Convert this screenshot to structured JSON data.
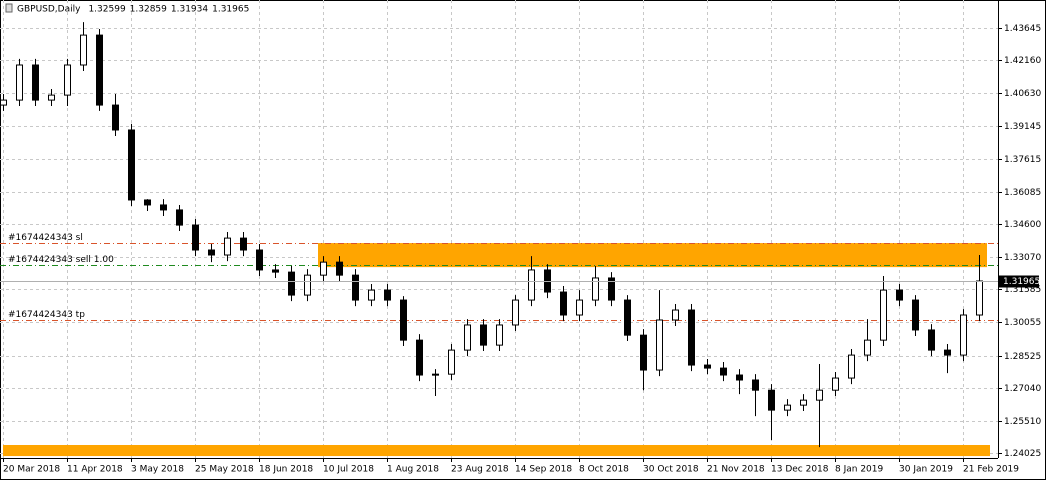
{
  "chart_data": {
    "type": "candlestick",
    "title": "GBPUSD,Daily",
    "header_quote": [
      1.32599,
      1.32859,
      1.31934,
      1.31965
    ],
    "last_price": 1.31965,
    "categories": [
      "20 Mar 2018",
      null,
      null,
      null,
      "11 Apr 2018",
      null,
      null,
      null,
      "3 May 2018",
      null,
      null,
      null,
      "25 May 2018",
      null,
      null,
      null,
      "18 Jun 2018",
      null,
      null,
      null,
      "10 Jul 2018",
      null,
      null,
      null,
      "1 Aug 2018",
      null,
      null,
      null,
      "23 Aug 2018",
      null,
      null,
      null,
      "14 Sep 2018",
      null,
      null,
      null,
      "8 Oct 2018",
      null,
      null,
      null,
      "30 Oct 2018",
      null,
      null,
      null,
      "21 Nov 2018",
      null,
      null,
      null,
      "13 Dec 2018",
      null,
      null,
      null,
      "8 Jan 2019",
      null,
      null,
      null,
      "30 Jan 2019",
      null,
      null,
      null,
      "21 Feb 2019",
      null
    ],
    "open": [
      1.4009,
      1.4032,
      1.4194,
      1.4032,
      1.4055,
      1.4194,
      1.4332,
      1.4009,
      1.3894,
      1.3571,
      1.3548,
      1.3525,
      1.3455,
      1.334,
      1.3317,
      1.3395,
      1.334,
      1.3248,
      1.3238,
      1.3132,
      1.3224,
      1.3284,
      1.3224,
      1.3109,
      1.3155,
      1.3109,
      1.2924,
      1.2763,
      1.2767,
      1.2878,
      1.2994,
      1.2901,
      1.2994,
      1.3109,
      1.3248,
      1.3146,
      1.304,
      1.3109,
      1.3211,
      1.3109,
      1.2947,
      1.2786,
      1.3017,
      1.3063,
      1.2809,
      1.2795,
      1.2763,
      1.274,
      1.2693,
      1.2601,
      1.2624,
      1.2647,
      1.2693,
      1.2749,
      1.2855,
      1.2924,
      1.3155,
      1.3109,
      1.2971,
      1.2878,
      1.2855,
      1.304
    ],
    "high": [
      1.406,
      1.4222,
      1.4222,
      1.4083,
      1.4222,
      1.4392,
      1.436,
      1.406,
      1.3922,
      1.3575,
      1.3575,
      1.3548,
      1.3483,
      1.3368,
      1.3423,
      1.3423,
      1.3368,
      1.3275,
      1.3266,
      1.3252,
      1.3312,
      1.3312,
      1.3252,
      1.3183,
      1.3183,
      1.3127,
      1.2952,
      1.279,
      1.2906,
      1.3021,
      1.3021,
      1.3021,
      1.3132,
      1.3312,
      1.3275,
      1.3174,
      1.3155,
      1.3266,
      1.3238,
      1.3132,
      1.2975,
      1.3155,
      1.3091,
      1.3091,
      1.2837,
      1.2823,
      1.279,
      1.2767,
      1.2721,
      1.2652,
      1.2675,
      1.2814,
      1.2777,
      1.2883,
      1.3021,
      1.322,
      1.3183,
      1.3132,
      1.2998,
      1.2906,
      1.3067,
      1.3317
    ],
    "low": [
      1.3982,
      1.4005,
      1.4005,
      1.4005,
      1.4005,
      1.4166,
      1.3982,
      1.3866,
      1.3543,
      1.352,
      1.3497,
      1.3428,
      1.3312,
      1.3284,
      1.3289,
      1.3312,
      1.322,
      1.3211,
      1.3104,
      1.3104,
      1.3197,
      1.3197,
      1.3081,
      1.3081,
      1.3081,
      1.2897,
      1.2735,
      1.2666,
      1.274,
      1.285,
      1.2874,
      1.2874,
      1.2966,
      1.3081,
      1.3118,
      1.3012,
      1.3012,
      1.3081,
      1.3081,
      1.292,
      1.2693,
      1.2758,
      1.2989,
      1.2781,
      1.2767,
      1.2735,
      1.2675,
      1.2573,
      1.2463,
      1.2573,
      1.2597,
      1.243,
      1.2666,
      1.2721,
      1.2827,
      1.2897,
      1.3081,
      1.2943,
      1.285,
      1.2772,
      1.2827,
      1.3012
    ],
    "close": [
      1.4032,
      1.4194,
      1.4032,
      1.4055,
      1.4194,
      1.4332,
      1.4009,
      1.3894,
      1.3571,
      1.3548,
      1.3525,
      1.3455,
      1.334,
      1.3317,
      1.3395,
      1.334,
      1.3248,
      1.3238,
      1.3132,
      1.3224,
      1.3284,
      1.3224,
      1.3109,
      1.3155,
      1.3109,
      1.2924,
      1.2763,
      1.2767,
      1.2878,
      1.2994,
      1.2901,
      1.2994,
      1.3109,
      1.3248,
      1.3146,
      1.304,
      1.3109,
      1.3211,
      1.3109,
      1.2947,
      1.2786,
      1.3017,
      1.3063,
      1.2809,
      1.2795,
      1.2763,
      1.274,
      1.2693,
      1.2601,
      1.2624,
      1.2647,
      1.2693,
      1.2749,
      1.2855,
      1.2924,
      1.3155,
      1.3109,
      1.2971,
      1.2878,
      1.2855,
      1.304,
      1.3197
    ],
    "ylim": [
      1.238,
      1.4494
    ],
    "yticks": [
      1.43645,
      {
        "value": 1.4216,
        "label": "1.42160"
      },
      {
        "value": 1.4063,
        "label": "1.40630"
      },
      1.39145,
      1.37615,
      1.36085,
      {
        "value": 1.346,
        "label": "1.34600"
      },
      {
        "value": 1.3307,
        "label": "1.33070"
      },
      1.31585,
      1.30055,
      1.28525,
      {
        "value": 1.2704,
        "label": "1.27040"
      },
      {
        "value": 1.2551,
        "label": "1.25510"
      },
      1.24025
    ],
    "grid": true,
    "up_color": "#ffffff",
    "down_color": "#000000",
    "orders": [
      {
        "label": "#1674424343 sl",
        "price": 1.3372,
        "color": "#d9542b"
      },
      {
        "label": "#1674424343 sell 1.00",
        "price": 1.3271,
        "color": "#1f8a1f"
      },
      {
        "label": "#1674424343 tp",
        "price": 1.3017,
        "color": "#d9542b"
      }
    ],
    "zones": [
      {
        "top": 1.3372,
        "bottom": 1.3261,
        "color": "#ffa500"
      },
      {
        "top": 1.244,
        "bottom": 1.2389,
        "color": "#ffa500"
      }
    ]
  }
}
